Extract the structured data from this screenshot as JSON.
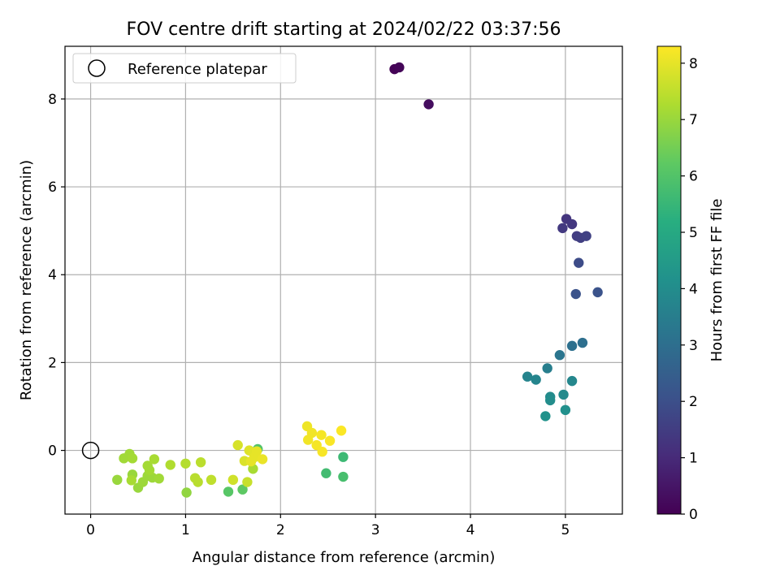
{
  "chart_data": {
    "type": "scatter",
    "title": "FOV centre drift starting at 2024/02/22 03:37:56",
    "xlabel": "Angular distance from reference (arcmin)",
    "ylabel": "Rotation from reference (arcmin)",
    "xlim": [
      -0.27,
      5.6
    ],
    "ylim": [
      -1.45,
      9.2
    ],
    "xticks": [
      "0",
      "1",
      "2",
      "3",
      "4",
      "5"
    ],
    "xtick_values": [
      0,
      1,
      2,
      3,
      4,
      5
    ],
    "yticks": [
      "0",
      "2",
      "4",
      "6",
      "8"
    ],
    "ytick_values": [
      0,
      2,
      4,
      6,
      8
    ],
    "grid": true,
    "legend": {
      "placement": "top-left",
      "entries": [
        "Reference platepar"
      ]
    },
    "reference_point": {
      "x": 0,
      "y": 0,
      "marker": "hollow-circle"
    },
    "colorbar": {
      "label": "Hours from first FF file",
      "colormap": "viridis",
      "range": [
        0,
        8.3
      ],
      "ticks": [
        "0",
        "1",
        "2",
        "3",
        "4",
        "5",
        "6",
        "7",
        "8"
      ],
      "tick_values": [
        0,
        1,
        2,
        3,
        4,
        5,
        6,
        7,
        8
      ]
    },
    "points": [
      {
        "x": 3.2,
        "y": 8.68,
        "c": 0.05
      },
      {
        "x": 3.25,
        "y": 8.72,
        "c": 0.1
      },
      {
        "x": 3.56,
        "y": 7.88,
        "c": 0.3
      },
      {
        "x": 5.01,
        "y": 5.27,
        "c": 1.3
      },
      {
        "x": 5.07,
        "y": 5.15,
        "c": 1.35
      },
      {
        "x": 4.97,
        "y": 5.06,
        "c": 1.4
      },
      {
        "x": 5.12,
        "y": 4.88,
        "c": 1.5
      },
      {
        "x": 5.16,
        "y": 4.84,
        "c": 1.55
      },
      {
        "x": 5.22,
        "y": 4.88,
        "c": 1.6
      },
      {
        "x": 5.14,
        "y": 4.27,
        "c": 1.9
      },
      {
        "x": 5.11,
        "y": 3.56,
        "c": 2.1
      },
      {
        "x": 5.34,
        "y": 3.6,
        "c": 2.1
      },
      {
        "x": 5.18,
        "y": 2.45,
        "c": 3.0
      },
      {
        "x": 5.07,
        "y": 2.38,
        "c": 3.05
      },
      {
        "x": 4.94,
        "y": 2.17,
        "c": 3.2
      },
      {
        "x": 4.81,
        "y": 1.87,
        "c": 3.5
      },
      {
        "x": 4.6,
        "y": 1.68,
        "c": 3.7
      },
      {
        "x": 4.69,
        "y": 1.61,
        "c": 3.75
      },
      {
        "x": 5.07,
        "y": 1.58,
        "c": 3.8
      },
      {
        "x": 4.98,
        "y": 1.27,
        "c": 3.9
      },
      {
        "x": 4.84,
        "y": 1.22,
        "c": 3.95
      },
      {
        "x": 4.84,
        "y": 1.14,
        "c": 4.0
      },
      {
        "x": 5.0,
        "y": 0.92,
        "c": 4.1
      },
      {
        "x": 4.79,
        "y": 0.78,
        "c": 4.2
      },
      {
        "x": 2.66,
        "y": -0.15,
        "c": 5.6
      },
      {
        "x": 2.48,
        "y": -0.52,
        "c": 5.7
      },
      {
        "x": 2.66,
        "y": -0.6,
        "c": 5.8
      },
      {
        "x": 1.76,
        "y": 0.03,
        "c": 6.0
      },
      {
        "x": 1.45,
        "y": -0.94,
        "c": 6.1
      },
      {
        "x": 1.6,
        "y": -0.89,
        "c": 6.2
      },
      {
        "x": 1.01,
        "y": -0.96,
        "c": 6.9
      },
      {
        "x": 0.28,
        "y": -0.67,
        "c": 7.0
      },
      {
        "x": 0.44,
        "y": -0.55,
        "c": 7.0
      },
      {
        "x": 0.5,
        "y": -0.85,
        "c": 7.0
      },
      {
        "x": 0.55,
        "y": -0.72,
        "c": 7.05
      },
      {
        "x": 0.6,
        "y": -0.58,
        "c": 7.05
      },
      {
        "x": 0.65,
        "y": -0.62,
        "c": 7.05
      },
      {
        "x": 0.72,
        "y": -0.64,
        "c": 7.1
      },
      {
        "x": 0.35,
        "y": -0.18,
        "c": 7.1
      },
      {
        "x": 0.41,
        "y": -0.08,
        "c": 7.1
      },
      {
        "x": 0.44,
        "y": -0.18,
        "c": 7.15
      },
      {
        "x": 0.6,
        "y": -0.35,
        "c": 7.15
      },
      {
        "x": 0.62,
        "y": -0.45,
        "c": 7.15
      },
      {
        "x": 0.67,
        "y": -0.2,
        "c": 7.2
      },
      {
        "x": 0.43,
        "y": -0.68,
        "c": 7.2
      },
      {
        "x": 0.84,
        "y": -0.33,
        "c": 7.3
      },
      {
        "x": 1.0,
        "y": -0.3,
        "c": 7.35
      },
      {
        "x": 1.1,
        "y": -0.63,
        "c": 7.4
      },
      {
        "x": 1.13,
        "y": -0.72,
        "c": 7.4
      },
      {
        "x": 1.16,
        "y": -0.27,
        "c": 7.45
      },
      {
        "x": 1.27,
        "y": -0.67,
        "c": 7.5
      },
      {
        "x": 1.71,
        "y": -0.42,
        "c": 7.2
      },
      {
        "x": 1.65,
        "y": -0.72,
        "c": 7.6
      },
      {
        "x": 1.5,
        "y": -0.67,
        "c": 7.7
      },
      {
        "x": 1.55,
        "y": 0.12,
        "c": 7.8
      },
      {
        "x": 1.62,
        "y": -0.24,
        "c": 7.85
      },
      {
        "x": 1.67,
        "y": 0.0,
        "c": 7.9
      },
      {
        "x": 1.71,
        "y": -0.05,
        "c": 7.95
      },
      {
        "x": 1.73,
        "y": -0.15,
        "c": 8.0
      },
      {
        "x": 1.75,
        "y": -0.02,
        "c": 8.0
      },
      {
        "x": 1.81,
        "y": -0.2,
        "c": 8.05
      },
      {
        "x": 1.69,
        "y": -0.25,
        "c": 8.0
      },
      {
        "x": 2.28,
        "y": 0.55,
        "c": 8.1
      },
      {
        "x": 2.33,
        "y": 0.4,
        "c": 8.15
      },
      {
        "x": 2.29,
        "y": 0.24,
        "c": 8.15
      },
      {
        "x": 2.38,
        "y": 0.12,
        "c": 8.2
      },
      {
        "x": 2.43,
        "y": 0.35,
        "c": 8.2
      },
      {
        "x": 2.44,
        "y": -0.03,
        "c": 8.22
      },
      {
        "x": 2.52,
        "y": 0.22,
        "c": 8.25
      },
      {
        "x": 2.64,
        "y": 0.45,
        "c": 8.28
      }
    ]
  }
}
